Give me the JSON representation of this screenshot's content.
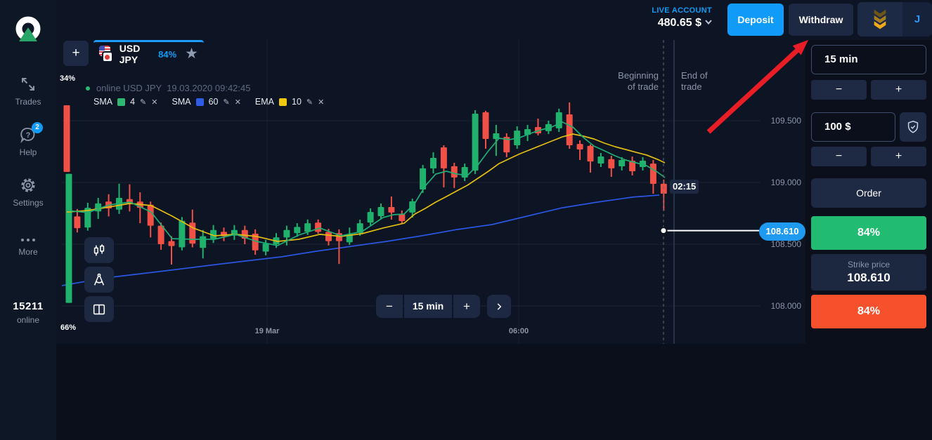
{
  "icons": {
    "edit": "✎",
    "close": "✕",
    "star": "★",
    "add": "+",
    "minus": "−",
    "plus": "+",
    "next": "›"
  },
  "topbar": {
    "account_type": "LIVE ACCOUNT",
    "balance": "480.65 $",
    "deposit": "Deposit",
    "withdraw": "Withdraw",
    "avatar_initial": "J"
  },
  "sidebar": {
    "items": [
      {
        "label": "Trades"
      },
      {
        "label": "Help",
        "badge": "2"
      },
      {
        "label": "Settings"
      },
      {
        "label": "More"
      }
    ],
    "online_count": "15211",
    "online_label": "online"
  },
  "tab": {
    "symbol": "USD JPY",
    "payout": "84%"
  },
  "chart_header": {
    "sentiment_top": "34%",
    "sentiment_bottom": "66%",
    "status_text": "online USD JPY  19.03.2020 09:42:45",
    "indicators": [
      {
        "name": "SMA",
        "period": "4",
        "color": "#2eb873"
      },
      {
        "name": "SMA",
        "period": "60",
        "color": "#2e5ce6"
      },
      {
        "name": "EMA",
        "period": "10",
        "color": "#f0c810"
      }
    ]
  },
  "trade_markers": {
    "begin_line1": "Beginning",
    "begin_line2": "of trade",
    "end_line1": "End of",
    "end_line2": "trade",
    "countdown": "02:15",
    "current_price_label": "108.610"
  },
  "bottom_controls": {
    "timeframe": "15 min"
  },
  "right_panel": {
    "duration": "15 min",
    "amount": "100 $",
    "order": "Order",
    "up_payout": "84%",
    "strike_label": "Strike price",
    "strike_price": "108.610",
    "down_payout": "84%"
  },
  "chart_data": {
    "type": "candlestick",
    "symbol": "USD JPY",
    "payout": "84%",
    "timeframe": "15 min",
    "session_info": "19.03.2020 09:42:45",
    "current_price": 108.61,
    "expiry_countdown": "02:15",
    "y_axis": {
      "min": 107.9,
      "max": 109.7,
      "ticks": [
        109.5,
        109.0,
        108.5,
        108.0
      ],
      "labels": [
        "109.500",
        "109.000",
        "108.500",
        "108.000"
      ]
    },
    "x_ticks": [
      {
        "label": "19 Mar",
        "x": 380
      },
      {
        "label": "06:00",
        "x": 738
      }
    ],
    "colors": {
      "up": "#20b16c",
      "down": "#f05045",
      "sma4": "#1fae74",
      "sma60": "#2b55e2",
      "ema10": "#e2bd12"
    },
    "candles": [
      [
        0,
        109.625,
        109.625,
        109.085,
        109.085
      ],
      [
        0.2,
        108.025,
        109.07,
        108.025,
        109.07
      ],
      [
        1,
        108.725,
        108.785,
        108.595,
        108.63
      ],
      [
        2,
        108.635,
        108.835,
        108.61,
        108.795
      ],
      [
        3,
        108.765,
        108.875,
        108.705,
        108.83
      ],
      [
        4,
        108.845,
        108.905,
        108.725,
        108.79
      ],
      [
        5,
        108.78,
        108.99,
        108.745,
        108.875
      ],
      [
        6,
        108.865,
        108.985,
        108.765,
        108.825
      ],
      [
        7,
        108.845,
        108.92,
        108.67,
        108.795
      ],
      [
        8,
        108.82,
        108.845,
        108.555,
        108.65
      ],
      [
        9,
        108.65,
        108.675,
        108.455,
        108.5
      ],
      [
        10,
        108.525,
        108.565,
        108.335,
        108.485
      ],
      [
        11,
        108.475,
        108.72,
        108.45,
        108.69
      ],
      [
        12,
        108.675,
        108.78,
        108.475,
        108.505
      ],
      [
        13,
        108.47,
        108.615,
        108.385,
        108.565
      ],
      [
        14,
        108.545,
        108.655,
        108.51,
        108.615
      ],
      [
        15,
        108.6,
        108.635,
        108.525,
        108.565
      ],
      [
        16,
        108.57,
        108.655,
        108.535,
        108.615
      ],
      [
        17,
        108.615,
        108.65,
        108.5,
        108.545
      ],
      [
        18,
        108.585,
        108.62,
        108.415,
        108.45
      ],
      [
        19,
        108.44,
        108.535,
        108.41,
        108.505
      ],
      [
        20,
        108.5,
        108.59,
        108.47,
        108.555
      ],
      [
        21,
        108.555,
        108.65,
        108.49,
        108.615
      ],
      [
        22,
        108.59,
        108.67,
        108.56,
        108.64
      ],
      [
        23,
        108.6,
        108.7,
        108.575,
        108.67
      ],
      [
        24,
        108.675,
        108.7,
        108.585,
        108.6
      ],
      [
        25,
        108.6,
        108.625,
        108.49,
        108.525
      ],
      [
        26,
        108.59,
        108.62,
        108.34,
        108.525
      ],
      [
        27,
        108.515,
        108.635,
        108.495,
        108.58
      ],
      [
        28,
        108.591,
        108.699,
        108.568,
        108.67
      ],
      [
        29,
        108.676,
        108.79,
        108.653,
        108.761
      ],
      [
        30,
        108.727,
        108.83,
        108.705,
        108.801
      ],
      [
        31,
        108.801,
        108.886,
        108.699,
        108.756
      ],
      [
        32,
        108.744,
        108.773,
        108.665,
        108.688
      ],
      [
        33,
        108.756,
        108.869,
        108.716,
        108.847
      ],
      [
        34,
        108.943,
        109.142,
        108.915,
        109.114
      ],
      [
        35,
        109.114,
        109.244,
        109.074,
        109.199
      ],
      [
        36,
        109.284,
        109.301,
        108.96,
        109.114
      ],
      [
        37,
        109.131,
        109.159,
        108.955,
        109.04
      ],
      [
        38,
        109.04,
        109.153,
        109.011,
        109.125
      ],
      [
        39,
        109.097,
        109.585,
        109.068,
        109.557
      ],
      [
        40,
        109.568,
        109.58,
        109.273,
        109.352
      ],
      [
        41,
        109.352,
        109.466,
        109.216,
        109.398
      ],
      [
        42,
        109.369,
        109.398,
        109.205,
        109.244
      ],
      [
        43,
        109.301,
        109.455,
        109.273,
        109.42
      ],
      [
        44,
        109.386,
        109.466,
        109.335,
        109.432
      ],
      [
        45,
        109.449,
        109.517,
        109.381,
        109.398
      ],
      [
        46,
        109.415,
        109.5,
        109.392,
        109.472
      ],
      [
        47,
        109.438,
        109.597,
        109.409,
        109.568
      ],
      [
        48,
        109.551,
        109.648,
        109.273,
        109.301
      ],
      [
        49,
        109.312,
        109.341,
        109.182,
        109.267
      ],
      [
        50,
        109.296,
        109.307,
        109.08,
        109.17
      ],
      [
        51,
        109.153,
        109.239,
        109.125,
        109.21
      ],
      [
        52,
        109.188,
        109.216,
        109.045,
        109.114
      ],
      [
        53,
        109.131,
        109.205,
        109.097,
        109.182
      ],
      [
        54,
        109.176,
        109.21,
        109.057,
        109.091
      ],
      [
        55,
        109.125,
        109.205,
        109.097,
        109.176
      ],
      [
        56,
        109.153,
        109.182,
        108.909,
        108.989
      ],
      [
        57,
        108.989,
        109.023,
        108.773,
        108.909
      ]
    ],
    "overlays": [
      {
        "name": "SMA 60",
        "color_key": "sma60",
        "points": [
          [
            88,
            108.165
          ],
          [
            150,
            108.227
          ],
          [
            200,
            108.261
          ],
          [
            250,
            108.295
          ],
          [
            300,
            108.33
          ],
          [
            350,
            108.364
          ],
          [
            400,
            108.398
          ],
          [
            450,
            108.443
          ],
          [
            500,
            108.483
          ],
          [
            550,
            108.523
          ],
          [
            600,
            108.568
          ],
          [
            650,
            108.619
          ],
          [
            700,
            108.659
          ],
          [
            750,
            108.727
          ],
          [
            800,
            108.795
          ],
          [
            850,
            108.841
          ],
          [
            900,
            108.881
          ],
          [
            938,
            108.898
          ]
        ]
      },
      {
        "name": "EMA 10",
        "color_key": "ema10",
        "points": [
          [
            95,
            108.761
          ],
          [
            125,
            108.773
          ],
          [
            155,
            108.801
          ],
          [
            185,
            108.83
          ],
          [
            215,
            108.813
          ],
          [
            245,
            108.727
          ],
          [
            275,
            108.631
          ],
          [
            305,
            108.568
          ],
          [
            335,
            108.58
          ],
          [
            365,
            108.563
          ],
          [
            395,
            108.523
          ],
          [
            425,
            108.54
          ],
          [
            455,
            108.58
          ],
          [
            485,
            108.563
          ],
          [
            515,
            108.585
          ],
          [
            545,
            108.631
          ],
          [
            575,
            108.67
          ],
          [
            590,
            108.744
          ],
          [
            605,
            108.79
          ],
          [
            620,
            108.841
          ],
          [
            635,
            108.886
          ],
          [
            650,
            108.932
          ],
          [
            665,
            108.977
          ],
          [
            680,
            109.034
          ],
          [
            695,
            109.091
          ],
          [
            710,
            109.153
          ],
          [
            725,
            109.193
          ],
          [
            740,
            109.233
          ],
          [
            755,
            109.267
          ],
          [
            770,
            109.301
          ],
          [
            785,
            109.335
          ],
          [
            800,
            109.369
          ],
          [
            815,
            109.392
          ],
          [
            830,
            109.375
          ],
          [
            845,
            109.352
          ],
          [
            860,
            109.318
          ],
          [
            875,
            109.29
          ],
          [
            890,
            109.267
          ],
          [
            905,
            109.244
          ],
          [
            920,
            109.222
          ],
          [
            935,
            109.188
          ],
          [
            946,
            109.159
          ]
        ]
      },
      {
        "name": "SMA 4",
        "color_key": "sma4",
        "points": [
          [
            95,
            108.773
          ],
          [
            125,
            108.756
          ],
          [
            155,
            108.818
          ],
          [
            185,
            108.841
          ],
          [
            215,
            108.761
          ],
          [
            245,
            108.545
          ],
          [
            275,
            108.54
          ],
          [
            305,
            108.54
          ],
          [
            335,
            108.58
          ],
          [
            365,
            108.523
          ],
          [
            395,
            108.489
          ],
          [
            425,
            108.574
          ],
          [
            455,
            108.631
          ],
          [
            485,
            108.568
          ],
          [
            515,
            108.602
          ],
          [
            545,
            108.716
          ],
          [
            560,
            108.739
          ],
          [
            575,
            108.744
          ],
          [
            590,
            108.83
          ],
          [
            605,
            108.972
          ],
          [
            620,
            109.068
          ],
          [
            635,
            109.091
          ],
          [
            650,
            109.068
          ],
          [
            665,
            109.057
          ],
          [
            680,
            109.142
          ],
          [
            695,
            109.256
          ],
          [
            710,
            109.358
          ],
          [
            725,
            109.347
          ],
          [
            740,
            109.364
          ],
          [
            755,
            109.398
          ],
          [
            770,
            109.426
          ],
          [
            785,
            109.449
          ],
          [
            800,
            109.489
          ],
          [
            815,
            109.449
          ],
          [
            830,
            109.364
          ],
          [
            845,
            109.295
          ],
          [
            860,
            109.256
          ],
          [
            875,
            109.216
          ],
          [
            890,
            109.182
          ],
          [
            905,
            109.159
          ],
          [
            920,
            109.136
          ],
          [
            935,
            109.085
          ],
          [
            946,
            109.04
          ]
        ]
      }
    ]
  }
}
